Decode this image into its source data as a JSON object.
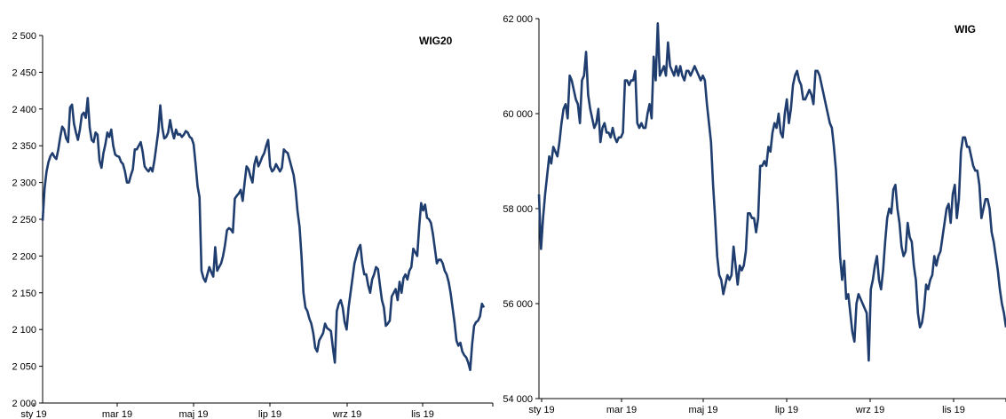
{
  "chart_data": [
    {
      "type": "line",
      "title": "WIG20",
      "xlabel": "",
      "ylabel": "",
      "ylim": [
        2000,
        2500
      ],
      "y_ticks": [
        "2 000",
        "2 050",
        "2 100",
        "2 150",
        "2 200",
        "2 250",
        "2 300",
        "2 350",
        "2 400",
        "2 450",
        "2 500"
      ],
      "x_ticks": [
        "sty 19",
        "mar 19",
        "maj 19",
        "lip 19",
        "wrz 19",
        "lis 19"
      ],
      "grid": false,
      "legend": "none",
      "line_color": "#1F3D6E",
      "series": [
        {
          "values": [
            2248,
            2292,
            2315,
            2328,
            2336,
            2340,
            2335,
            2332,
            2345,
            2362,
            2376,
            2372,
            2360,
            2355,
            2402,
            2406,
            2380,
            2368,
            2358,
            2372,
            2392,
            2395,
            2388,
            2415,
            2375,
            2358,
            2355,
            2368,
            2365,
            2330,
            2320,
            2340,
            2352,
            2368,
            2362,
            2372,
            2350,
            2338,
            2336,
            2335,
            2328,
            2325,
            2315,
            2300,
            2300,
            2310,
            2318,
            2345,
            2345,
            2350,
            2355,
            2342,
            2322,
            2318,
            2315,
            2320,
            2315,
            2330,
            2350,
            2370,
            2405,
            2375,
            2360,
            2362,
            2368,
            2385,
            2370,
            2360,
            2372,
            2365,
            2366,
            2362,
            2365,
            2370,
            2368,
            2362,
            2360,
            2352,
            2325,
            2295,
            2280,
            2180,
            2170,
            2165,
            2175,
            2185,
            2178,
            2172,
            2212,
            2180,
            2185,
            2190,
            2200,
            2215,
            2235,
            2238,
            2236,
            2232,
            2278,
            2282,
            2285,
            2290,
            2275,
            2300,
            2322,
            2318,
            2308,
            2300,
            2325,
            2335,
            2322,
            2328,
            2335,
            2340,
            2350,
            2358,
            2322,
            2315,
            2318,
            2325,
            2320,
            2315,
            2320,
            2345,
            2342,
            2340,
            2330,
            2320,
            2310,
            2290,
            2260,
            2240,
            2200,
            2150,
            2130,
            2125,
            2115,
            2108,
            2095,
            2075,
            2070,
            2085,
            2090,
            2095,
            2108,
            2102,
            2100,
            2098,
            2075,
            2055,
            2125,
            2135,
            2140,
            2130,
            2110,
            2100,
            2130,
            2150,
            2170,
            2190,
            2200,
            2210,
            2215,
            2190,
            2175,
            2175,
            2160,
            2150,
            2168,
            2175,
            2185,
            2182,
            2160,
            2140,
            2130,
            2105,
            2108,
            2112,
            2145,
            2150,
            2155,
            2140,
            2165,
            2150,
            2170,
            2175,
            2168,
            2180,
            2185,
            2210,
            2205,
            2200,
            2240,
            2272,
            2262,
            2270,
            2252,
            2250,
            2245,
            2230,
            2210,
            2190,
            2195,
            2195,
            2190,
            2180,
            2175,
            2165,
            2150,
            2130,
            2110,
            2085,
            2078,
            2082,
            2070,
            2065,
            2062,
            2055,
            2045,
            2080,
            2105,
            2110,
            2112,
            2118,
            2135,
            2130
          ]
        }
      ]
    },
    {
      "type": "line",
      "title": "WIG",
      "xlabel": "",
      "ylabel": "",
      "ylim": [
        54000,
        62000
      ],
      "y_ticks": [
        "54 000",
        "56 000",
        "58 000",
        "60 000",
        "62 000"
      ],
      "x_ticks": [
        "sty 19",
        "mar 19",
        "maj 19",
        "lip 19",
        "wrz 19",
        "lis 19"
      ],
      "grid": false,
      "legend": "none",
      "line_color": "#1F3D6E",
      "series": [
        {
          "values": [
            58300,
            57150,
            57800,
            58300,
            58700,
            59100,
            58950,
            59300,
            59200,
            59100,
            59400,
            59800,
            60100,
            60200,
            59900,
            60800,
            60700,
            60500,
            60300,
            60200,
            59800,
            60700,
            60800,
            61300,
            60400,
            60100,
            59900,
            59700,
            59800,
            60100,
            59400,
            59700,
            59800,
            59600,
            59600,
            59500,
            59700,
            59500,
            59400,
            59500,
            59500,
            59600,
            60700,
            60700,
            60600,
            60700,
            60700,
            60900,
            59800,
            59700,
            59800,
            59700,
            59700,
            60000,
            60200,
            59900,
            61200,
            60700,
            61900,
            60800,
            60900,
            61000,
            60800,
            61500,
            61000,
            60900,
            60800,
            61000,
            60800,
            61000,
            60800,
            60700,
            60900,
            60900,
            60800,
            60900,
            61000,
            60900,
            60800,
            60700,
            60800,
            60700,
            60200,
            59800,
            59400,
            58500,
            57800,
            57000,
            56600,
            56500,
            56200,
            56400,
            56600,
            56500,
            56600,
            57200,
            56800,
            56400,
            56800,
            56700,
            56800,
            57100,
            57900,
            57900,
            57800,
            57800,
            57500,
            57800,
            58900,
            58900,
            59000,
            58900,
            59300,
            59200,
            59600,
            59800,
            59700,
            60000,
            59600,
            59500,
            60000,
            60300,
            59800,
            60100,
            60600,
            60800,
            60900,
            60700,
            60600,
            60300,
            60300,
            60400,
            60500,
            60400,
            60200,
            60900,
            60900,
            60800,
            60600,
            60400,
            60200,
            60000,
            59800,
            59700,
            59300,
            58800,
            58000,
            57000,
            56500,
            56900,
            56100,
            56200,
            55800,
            55400,
            55200,
            56000,
            56200,
            56100,
            56000,
            55900,
            55800,
            54800,
            56300,
            56500,
            56800,
            57000,
            56500,
            56300,
            56700,
            57300,
            57800,
            58000,
            57900,
            58400,
            58500,
            58000,
            57700,
            57200,
            57000,
            57100,
            57700,
            57400,
            57300,
            56800,
            56500,
            55800,
            55500,
            55600,
            55900,
            56400,
            56300,
            56500,
            56600,
            57000,
            56800,
            57000,
            57100,
            57400,
            57700,
            58000,
            58100,
            57700,
            58300,
            58500,
            57800,
            58200,
            59200,
            59500,
            59500,
            59300,
            59300,
            59100,
            58900,
            58800,
            58800,
            58500,
            57800,
            58000,
            58200,
            58200,
            58000,
            57500,
            57300,
            57000,
            56700,
            56300,
            56000,
            55800,
            55500
          ]
        }
      ]
    }
  ]
}
